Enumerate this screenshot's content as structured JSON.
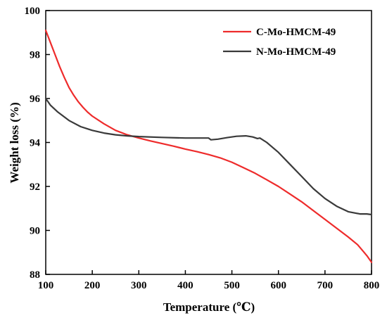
{
  "chart_data": {
    "type": "line",
    "xlabel": "Temperature (℃)",
    "ylabel": "Weight loss (%)",
    "xlim": [
      100,
      800
    ],
    "ylim": [
      88,
      100
    ],
    "xticks": [
      "100",
      "200",
      "300",
      "400",
      "500",
      "600",
      "700",
      "800"
    ],
    "yticks": [
      "88",
      "90",
      "92",
      "94",
      "96",
      "98",
      "100"
    ],
    "legend_position": "top-right",
    "grid": false,
    "series": [
      {
        "name": "C-Mo-HMCM-49",
        "color": "#ee2b2b",
        "x": [
          100,
          110,
          120,
          130,
          140,
          150,
          160,
          170,
          180,
          190,
          200,
          225,
          250,
          275,
          300,
          325,
          350,
          375,
          400,
          425,
          450,
          475,
          500,
          525,
          550,
          575,
          600,
          625,
          650,
          675,
          700,
          725,
          750,
          770,
          780,
          790,
          800
        ],
        "y": [
          99.1,
          98.55,
          98.0,
          97.45,
          96.95,
          96.5,
          96.15,
          95.85,
          95.6,
          95.38,
          95.2,
          94.85,
          94.55,
          94.35,
          94.2,
          94.07,
          93.95,
          93.83,
          93.7,
          93.58,
          93.45,
          93.3,
          93.1,
          92.85,
          92.6,
          92.3,
          92.0,
          91.65,
          91.3,
          90.9,
          90.5,
          90.1,
          89.7,
          89.35,
          89.1,
          88.85,
          88.55
        ]
      },
      {
        "name": "N-Mo-HMCM-49",
        "color": "#3a3a3a",
        "x": [
          100,
          110,
          125,
          150,
          175,
          200,
          225,
          250,
          275,
          300,
          350,
          400,
          450,
          455,
          470,
          490,
          510,
          530,
          545,
          555,
          560,
          575,
          600,
          625,
          650,
          675,
          700,
          725,
          750,
          775,
          790,
          800
        ],
        "y": [
          96.0,
          95.7,
          95.4,
          95.0,
          94.72,
          94.55,
          94.43,
          94.35,
          94.3,
          94.27,
          94.23,
          94.2,
          94.2,
          94.12,
          94.15,
          94.22,
          94.28,
          94.3,
          94.25,
          94.18,
          94.2,
          94.0,
          93.55,
          93.0,
          92.45,
          91.9,
          91.45,
          91.1,
          90.85,
          90.75,
          90.75,
          90.72
        ]
      }
    ]
  }
}
